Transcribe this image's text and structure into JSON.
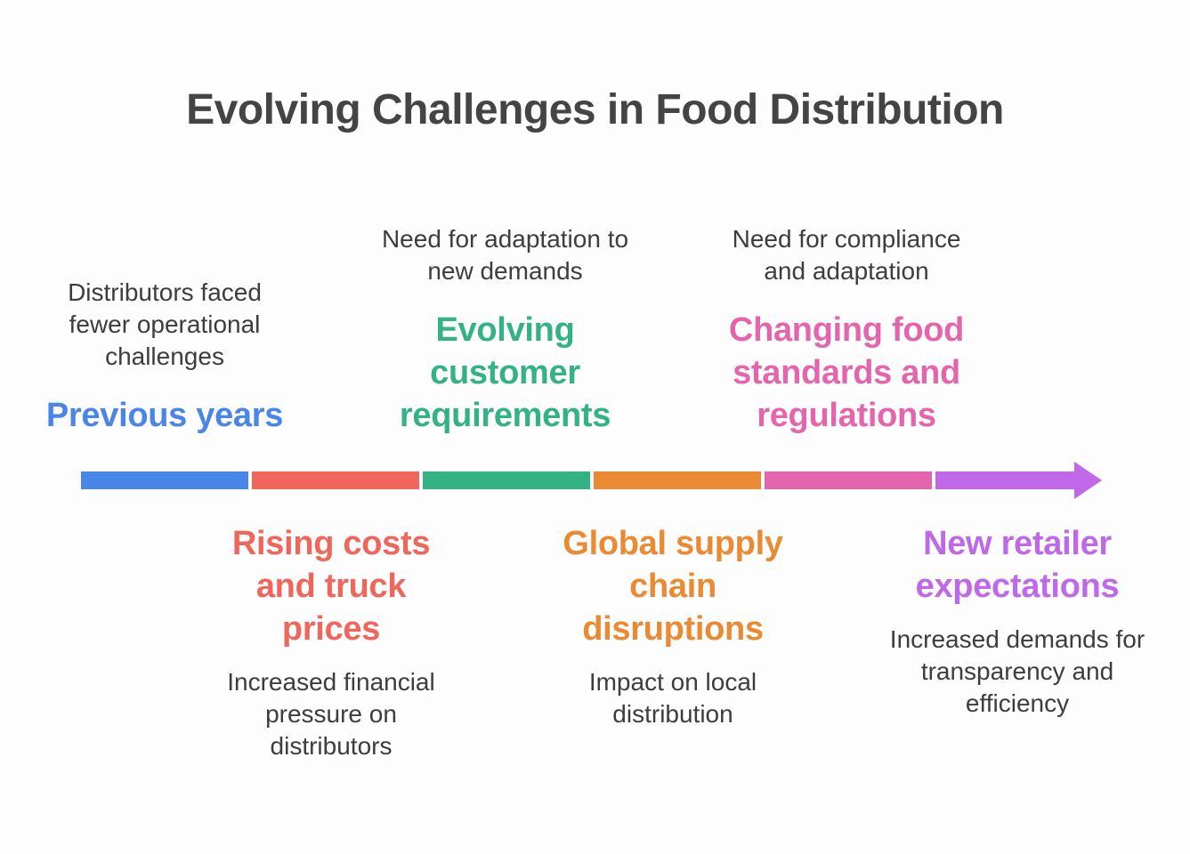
{
  "title": "Evolving Challenges in Food Distribution",
  "colors": {
    "blue": "#4a86e8",
    "red": "#f0665a",
    "green": "#33b283",
    "orange": "#ea8a33",
    "pink": "#e465ad",
    "purple": "#bf69e8",
    "title": "#444444",
    "text": "#3d3d3d"
  },
  "stages": [
    {
      "heading": "Previous years",
      "description": "Distributors faced fewer operational challenges",
      "color": "#4a86e8",
      "position": "above"
    },
    {
      "heading": "Rising costs and truck prices",
      "description": "Increased financial pressure on distributors",
      "color": "#f0665a",
      "position": "below"
    },
    {
      "heading": "Evolving customer requirements",
      "description": "Need for adaptation to new demands",
      "color": "#33b283",
      "position": "above"
    },
    {
      "heading": "Global supply chain disruptions",
      "description": "Impact on local distribution",
      "color": "#ea8a33",
      "position": "below"
    },
    {
      "heading": "Changing food standards and regulations",
      "description": "Need for compliance and adaptation",
      "color": "#e465ad",
      "position": "above"
    },
    {
      "heading": "New retailer expectations",
      "description": "Increased demands for transparency and efficiency",
      "color": "#bf69e8",
      "position": "below"
    }
  ]
}
